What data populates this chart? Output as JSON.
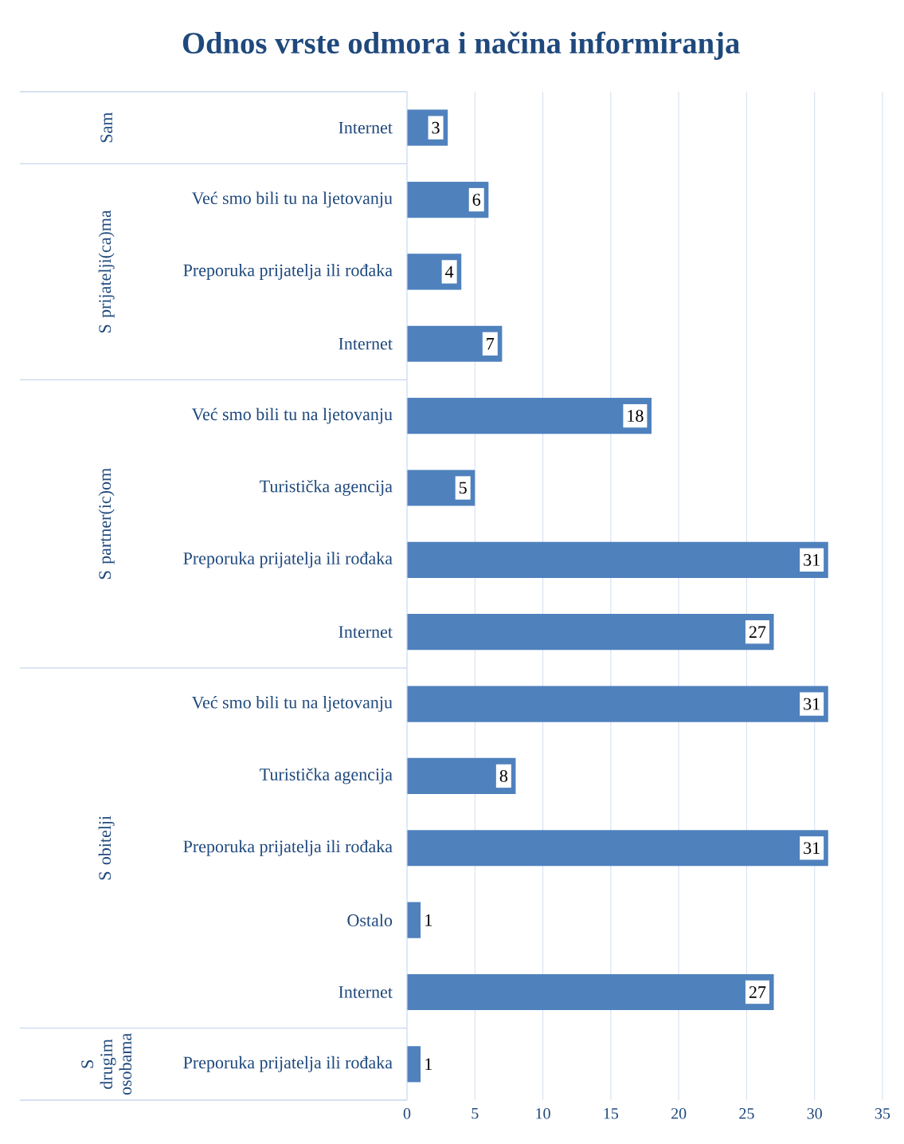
{
  "chart_data": {
    "type": "bar",
    "orientation": "horizontal",
    "title": "Odnos vrste odmora i načina informiranja",
    "categories": [
      "Internet",
      "Već smo bili tu na ljetovanju",
      "Preporuka prijatelja ili rođaka",
      "Internet",
      "Već smo bili tu na ljetovanju",
      "Turistička agencija",
      "Preporuka prijatelja ili rođaka",
      "Internet",
      "Već smo bili tu na ljetovanju",
      "Turistička agencija",
      "Preporuka prijatelja ili rođaka",
      "Ostalo",
      "Internet",
      "Preporuka prijatelja ili rođaka"
    ],
    "values": [
      3,
      6,
      4,
      7,
      18,
      5,
      31,
      27,
      31,
      8,
      31,
      1,
      27,
      1
    ],
    "color": "#4f81bd",
    "data_labels": true,
    "grid": "x",
    "xlim": [
      0,
      35
    ],
    "xticks": [
      0,
      5,
      10,
      15,
      20,
      25,
      30,
      35
    ],
    "annotations": [
      "Sam",
      "S prijatelji(ca)ma",
      "S partner(ic)om",
      "S obitelji",
      "S drugim osobama"
    ]
  }
}
